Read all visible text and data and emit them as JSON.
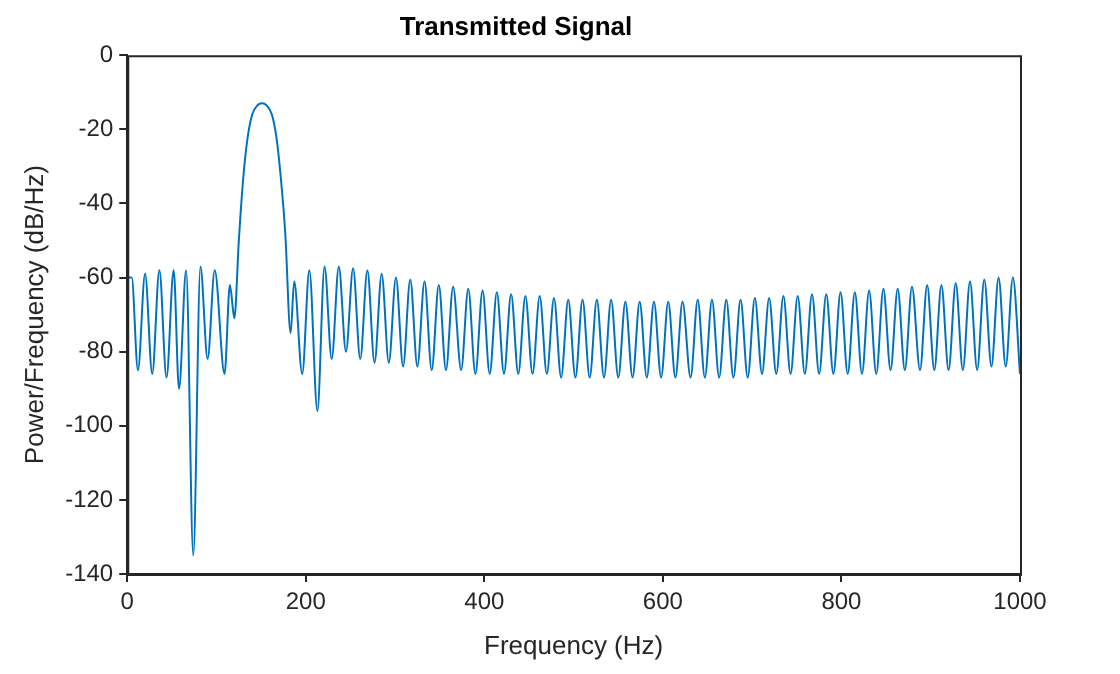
{
  "chart_data": {
    "type": "line",
    "title": "Transmitted Signal",
    "xlabel": "Frequency (Hz)",
    "ylabel": "Power/Frequency (dB/Hz)",
    "xlim": [
      0,
      1000
    ],
    "xticks": [
      0,
      200,
      400,
      600,
      800,
      1000
    ],
    "ylim": [
      -140,
      0
    ],
    "yticks": [
      -140,
      -120,
      -100,
      -80,
      -60,
      -40,
      -20,
      0
    ],
    "grid": false,
    "legend": false,
    "marker": "none",
    "line_style": "solid",
    "series": [
      {
        "color": "#0072bd",
        "x": [
          0,
          5,
          12,
          20,
          28,
          36,
          44,
          52,
          58,
          66,
          74,
          82,
          90,
          98,
          109,
          115,
          120,
          125,
          130,
          135,
          140,
          146,
          151,
          156,
          162,
          167,
          172,
          177,
          183,
          187,
          196,
          204,
          213,
          221,
          229,
          237,
          245,
          253,
          261,
          269,
          277,
          285,
          293,
          301,
          309,
          317,
          325,
          333,
          341,
          349,
          357,
          365,
          374,
          382,
          390,
          398,
          406,
          414,
          422,
          430,
          438,
          446,
          454,
          462,
          470,
          478,
          486,
          494,
          502,
          510,
          518,
          526,
          534,
          542,
          550,
          558,
          566,
          574,
          582,
          590,
          598,
          606,
          614,
          622,
          631,
          639,
          647,
          655,
          663,
          671,
          679,
          687,
          695,
          703,
          711,
          719,
          727,
          735,
          743,
          751,
          759,
          767,
          775,
          783,
          791,
          799,
          807,
          815,
          823,
          831,
          839,
          847,
          855,
          863,
          871,
          879,
          888,
          896,
          904,
          912,
          920,
          928,
          936,
          944,
          952,
          960,
          968,
          976,
          984,
          992,
          1000
        ],
        "values": [
          -60,
          -60,
          -85,
          -59,
          -86,
          -58,
          -87,
          -58,
          -90,
          -58,
          -135,
          -57,
          -82,
          -58,
          -86,
          -62,
          -71,
          -50,
          -33,
          -22,
          -16,
          -13.5,
          -13,
          -13.5,
          -16,
          -22,
          -33,
          -48,
          -75,
          -61,
          -86,
          -58,
          -96,
          -57,
          -82,
          -57,
          -80,
          -57.5,
          -82,
          -58,
          -83,
          -59,
          -83,
          -60,
          -84,
          -60.5,
          -84,
          -61,
          -85,
          -62,
          -85,
          -62.5,
          -85,
          -63,
          -86,
          -63.5,
          -86,
          -64,
          -86,
          -64.5,
          -86,
          -65,
          -86,
          -65,
          -86,
          -65.5,
          -87,
          -66,
          -87,
          -66,
          -87,
          -66,
          -87,
          -66,
          -87,
          -66.5,
          -87,
          -66.5,
          -87,
          -66.5,
          -87,
          -66.5,
          -87,
          -66.5,
          -87,
          -66,
          -87,
          -66,
          -87,
          -66,
          -87,
          -66,
          -87,
          -65.5,
          -86,
          -65.5,
          -86,
          -65,
          -86,
          -65,
          -86,
          -64.5,
          -86,
          -64.5,
          -86,
          -64,
          -86,
          -64,
          -86,
          -63.5,
          -86,
          -63,
          -85,
          -63,
          -85,
          -62.5,
          -85,
          -62,
          -85,
          -62,
          -85,
          -61.5,
          -85,
          -61,
          -85,
          -60.5,
          -84,
          -60,
          -84,
          -60,
          -86
        ]
      }
    ]
  }
}
